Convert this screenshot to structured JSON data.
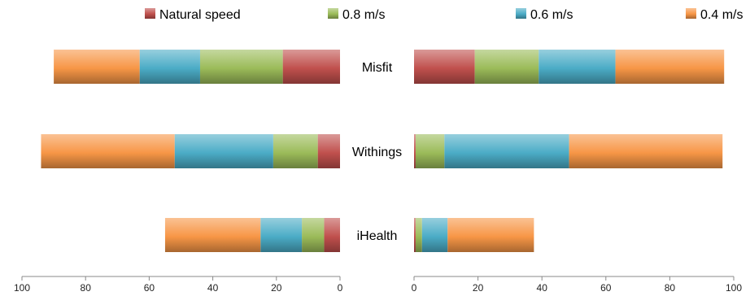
{
  "chart_data": {
    "type": "bar",
    "orientation": "horizontal-diverging-stacked",
    "categories": [
      "Misfit",
      "Withings",
      "iHealth"
    ],
    "series": [
      {
        "name": "Natural speed",
        "color": "#c0504d"
      },
      {
        "name": "0.8 m/s",
        "color": "#9bbb59"
      },
      {
        "name": "0.6 m/s",
        "color": "#4bacc6"
      },
      {
        "name": "0.4 m/s",
        "color": "#f79646"
      }
    ],
    "panels": [
      {
        "side": "left",
        "xlim": [
          0,
          100
        ],
        "direction": "reversed",
        "ticks": [
          "100",
          "80",
          "60",
          "40",
          "20",
          "0"
        ],
        "values": {
          "Misfit": [
            18,
            26,
            19,
            27
          ],
          "Withings": [
            7,
            14,
            31,
            42
          ],
          "iHealth": [
            5,
            7,
            13,
            30
          ]
        }
      },
      {
        "side": "right",
        "xlim": [
          0,
          100
        ],
        "direction": "normal",
        "ticks": [
          "0",
          "20",
          "40",
          "60",
          "80",
          "100"
        ],
        "values": {
          "Misfit": [
            19,
            20,
            24,
            34
          ],
          "Withings": [
            0.5,
            9,
            39,
            48
          ],
          "iHealth": [
            0.5,
            2,
            8,
            27
          ]
        }
      }
    ],
    "legend": {
      "position": "top"
    },
    "grid": false
  }
}
